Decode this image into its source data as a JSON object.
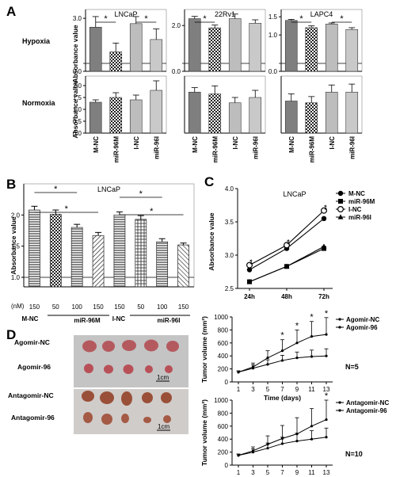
{
  "panel_letters": {
    "a": "A",
    "b": "B",
    "c": "C",
    "d": "D"
  },
  "panel_a": {
    "row_labels": [
      "Hypoxia",
      "Normoxia"
    ],
    "ylabel": "Absorbance value",
    "categories": [
      "M-NC",
      "miR-96M",
      "I-NC",
      "miR-96I"
    ]
  },
  "panel_b": {
    "ylabel": "Absorbance value",
    "nM_label": "(nM)",
    "group_labels": [
      "M-NC",
      "miR-96M",
      "I-NC",
      "miR-96I"
    ]
  },
  "panel_c": {
    "ylabel": "Absorbance value"
  },
  "panel_d": {
    "photo_labels": [
      "Agomir-NC",
      "Agomir-96",
      "Antagomir-NC",
      "Antagomir-96"
    ],
    "scale_bar": "1cm",
    "n_labels": [
      "N=5",
      "N=10"
    ]
  },
  "chart_data": [
    {
      "id": "A-hyp-LNCaP",
      "type": "bar",
      "title": "LNCaP",
      "categories": [
        "M-NC",
        "miR-96M",
        "I-NC",
        "miR-96I"
      ],
      "values": [
        2.5,
        1.1,
        2.7,
        1.8
      ],
      "errors": [
        0.6,
        0.5,
        0.4,
        0.6
      ],
      "ylim": [
        0,
        3.5
      ],
      "axis_break": true,
      "ticks": [
        {
          "v": 0.0,
          "label": "0.0"
        },
        {
          "v": 3.0,
          "label": "3.0"
        }
      ],
      "sig": [
        {
          "from": 0,
          "to": 1,
          "label": "*"
        },
        {
          "from": 2,
          "to": 3,
          "label": "*"
        }
      ]
    },
    {
      "id": "A-hyp-22Rv1",
      "type": "bar",
      "title": "22Rv1",
      "categories": [
        "M-NC",
        "miR-96M",
        "I-NC",
        "miR-96I"
      ],
      "values": [
        2.3,
        1.9,
        2.3,
        2.1
      ],
      "errors": [
        0.1,
        0.12,
        0.2,
        0.15
      ],
      "ylim": [
        0,
        2.7
      ],
      "axis_break": true,
      "ticks": [
        {
          "v": 0.0,
          "label": "0.0"
        },
        {
          "v": 2.0,
          "label": "2.0"
        }
      ],
      "sig": [
        {
          "from": 0,
          "to": 1,
          "label": "*"
        }
      ]
    },
    {
      "id": "A-hyp-LAPC4",
      "type": "bar",
      "title": "LAPC4",
      "categories": [
        "M-NC",
        "miR-96M",
        "I-NC",
        "miR-96I"
      ],
      "values": [
        1.4,
        1.2,
        1.3,
        1.15
      ],
      "errors": [
        0.03,
        0.05,
        0.03,
        0.05
      ],
      "ylim": [
        0,
        1.7
      ],
      "axis_break": true,
      "ticks": [
        {
          "v": 0.0,
          "label": "0.0"
        },
        {
          "v": 1.0,
          "label": "1.0"
        },
        {
          "v": 1.5,
          "label": "1.5"
        }
      ],
      "sig": [
        {
          "from": 0,
          "to": 1,
          "label": "*"
        },
        {
          "from": 2,
          "to": 3,
          "label": "*"
        }
      ]
    },
    {
      "id": "A-norm-LNCaP",
      "type": "bar",
      "title": "",
      "categories": [
        "M-NC",
        "miR-96M",
        "I-NC",
        "miR-96I"
      ],
      "values": [
        1.3,
        1.5,
        1.4,
        1.8
      ],
      "errors": [
        0.1,
        0.2,
        0.2,
        0.4
      ],
      "ylim": [
        0,
        2.4
      ],
      "axis_break": false,
      "ticks": [
        {
          "v": 0.0,
          "label": "0.0"
        },
        {
          "v": 0.5,
          "label": "0.5"
        },
        {
          "v": 1.0,
          "label": "1.0"
        },
        {
          "v": 1.5,
          "label": "1.5"
        },
        {
          "v": 2.0,
          "label": "2.0"
        }
      ],
      "sig": []
    },
    {
      "id": "A-norm-22Rv1",
      "type": "bar",
      "title": "",
      "categories": [
        "M-NC",
        "miR-96M",
        "I-NC",
        "miR-96I"
      ],
      "values": [
        2.3,
        2.2,
        1.7,
        2.0
      ],
      "errors": [
        0.25,
        0.45,
        0.3,
        0.4
      ],
      "ylim": [
        0,
        3.2
      ],
      "axis_break": false,
      "ticks": [],
      "sig": []
    },
    {
      "id": "A-norm-LAPC4",
      "type": "bar",
      "title": "",
      "categories": [
        "M-NC",
        "miR-96M",
        "I-NC",
        "miR-96I"
      ],
      "values": [
        1.8,
        1.7,
        2.3,
        2.3
      ],
      "errors": [
        0.4,
        0.35,
        0.4,
        0.45
      ],
      "ylim": [
        0,
        3.2
      ],
      "axis_break": false,
      "ticks": [],
      "sig": []
    },
    {
      "id": "B",
      "type": "bar",
      "title": "LNCaP",
      "xlabel": "(nM)",
      "categories": [
        "150",
        "50",
        "100",
        "150",
        "150",
        "50",
        "100",
        "150"
      ],
      "groups": [
        "M-NC",
        "miR-96M",
        "I-NC",
        "miR-96I"
      ],
      "values": [
        2.08,
        2.01,
        1.8,
        1.67,
        2.0,
        1.93,
        1.57,
        1.52
      ],
      "errors": [
        0.06,
        0.07,
        0.05,
        0.05,
        0.05,
        0.06,
        0.05,
        0.03
      ],
      "ylim": [
        1.0,
        2.5
      ],
      "axis_break": true,
      "ticks": [
        {
          "v": 1.0,
          "label": "1.0"
        },
        {
          "v": 1.5,
          "label": "1.5"
        },
        {
          "v": 2.0,
          "label": "2.0"
        }
      ],
      "sig": [
        {
          "from": 0,
          "to": 2,
          "label": "*"
        },
        {
          "from": 0,
          "to": 3,
          "label": "*"
        },
        {
          "from": 4,
          "to": 6,
          "label": "*"
        },
        {
          "from": 4,
          "to": 7,
          "label": "*"
        }
      ]
    },
    {
      "id": "C",
      "type": "line",
      "title": "LNCaP",
      "x": [
        "24h",
        "48h",
        "72h"
      ],
      "ylim": [
        2.5,
        4.0
      ],
      "ticks": [
        {
          "v": 2.5,
          "label": "2.5"
        },
        {
          "v": 3.0,
          "label": "3.0"
        },
        {
          "v": 3.5,
          "label": "3.5"
        },
        {
          "v": 4.0,
          "label": "4.0"
        }
      ],
      "series": [
        {
          "name": "M-NC",
          "marker": "circle-filled",
          "values": [
            2.78,
            3.1,
            3.55
          ]
        },
        {
          "name": "miR-96M",
          "marker": "square-filled",
          "values": [
            2.6,
            2.83,
            3.1
          ]
        },
        {
          "name": "I-NC",
          "marker": "circle-open",
          "values": [
            2.85,
            3.15,
            3.67
          ]
        },
        {
          "name": "miR-96I",
          "marker": "triangle-filled",
          "values": [
            2.6,
            2.83,
            3.13
          ]
        }
      ],
      "annotations": [
        "**",
        "**",
        "**"
      ]
    },
    {
      "id": "D-agomir",
      "type": "line",
      "xlabel": "Time (days)",
      "ylabel": "Tumor volume (mm³)",
      "x": [
        1,
        3,
        5,
        7,
        9,
        11,
        13
      ],
      "ylim": [
        0,
        1000
      ],
      "yticks": [
        0,
        200,
        400,
        600,
        800,
        1000
      ],
      "series": [
        {
          "name": "Agomir-NC",
          "values": [
            150,
            210,
            270,
            330,
            370,
            390,
            400
          ],
          "errors": [
            20,
            50,
            70,
            80,
            90,
            100,
            110
          ]
        },
        {
          "name": "Agomir-96",
          "values": [
            150,
            230,
            370,
            480,
            600,
            700,
            730
          ],
          "errors": [
            20,
            60,
            110,
            170,
            200,
            230,
            260
          ]
        }
      ],
      "annotations": [
        {
          "x": 7,
          "label": "*"
        },
        {
          "x": 9,
          "label": "*"
        },
        {
          "x": 11,
          "label": "*"
        },
        {
          "x": 13,
          "label": "*"
        }
      ]
    },
    {
      "id": "D-antagomir",
      "type": "line",
      "xlabel": "Time (days)",
      "ylabel": "Tumor volume (mm³)",
      "x": [
        1,
        3,
        5,
        7,
        9,
        11,
        13
      ],
      "ylim": [
        0,
        1000
      ],
      "yticks": [
        0,
        200,
        400,
        600,
        800,
        1000
      ],
      "series": [
        {
          "name": "Antagomir-NC",
          "values": [
            150,
            220,
            320,
            410,
            480,
            600,
            700
          ],
          "errors": [
            20,
            60,
            130,
            200,
            250,
            270,
            300
          ]
        },
        {
          "name": "Antagomir-96",
          "values": [
            150,
            200,
            260,
            330,
            370,
            400,
            430
          ],
          "errors": [
            20,
            50,
            80,
            100,
            120,
            130,
            140
          ]
        }
      ],
      "annotations": [
        {
          "x": 13,
          "label": "*"
        }
      ]
    }
  ]
}
